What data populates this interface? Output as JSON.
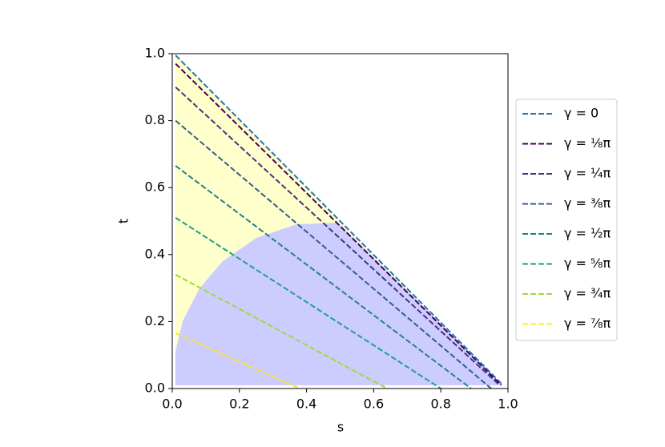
{
  "chart_data": {
    "type": "line",
    "xlabel": "s",
    "ylabel": "t",
    "xlim": [
      0,
      1
    ],
    "ylim": [
      0,
      1
    ],
    "xticks": [
      {
        "value": 0,
        "label": "0.0"
      },
      {
        "value": 0.2,
        "label": "0.2"
      },
      {
        "value": 0.4,
        "label": "0.4"
      },
      {
        "value": 0.6,
        "label": "0.6"
      },
      {
        "value": 0.8,
        "label": "0.8"
      },
      {
        "value": 1,
        "label": "1.0"
      }
    ],
    "yticks": [
      {
        "value": 0,
        "label": "0.0"
      },
      {
        "value": 0.2,
        "label": "0.2"
      },
      {
        "value": 0.4,
        "label": "0.4"
      },
      {
        "value": 0.6,
        "label": "0.6"
      },
      {
        "value": 0.8,
        "label": "0.8"
      },
      {
        "value": 1,
        "label": "1.0"
      }
    ],
    "legend": "outside-right",
    "series": [
      {
        "name": "γ = 0",
        "color": "#1f77b4",
        "x": [
          0.01,
          0.985
        ],
        "values": [
          0.995,
          0.01
        ]
      },
      {
        "name": "γ = ⅛π",
        "color": "#440154",
        "x": [
          0.01,
          0.98
        ],
        "values": [
          0.97,
          0.01
        ]
      },
      {
        "name": "γ = ¼π",
        "color": "#46327e",
        "x": [
          0.01,
          0.975
        ],
        "values": [
          0.9,
          0.01
        ]
      },
      {
        "name": "γ = ⅜π",
        "color": "#365c8d",
        "x": [
          0.01,
          0.95
        ],
        "values": [
          0.8,
          0.0
        ]
      },
      {
        "name": "γ = ½π",
        "color": "#277f8e",
        "x": [
          0.01,
          0.89
        ],
        "values": [
          0.665,
          0.0
        ]
      },
      {
        "name": "γ = ⅝π",
        "color": "#1fa187",
        "x": [
          0.01,
          0.8
        ],
        "values": [
          0.51,
          0.0
        ]
      },
      {
        "name": "γ = ¾π",
        "color": "#a0da39",
        "x": [
          0.01,
          0.64
        ],
        "values": [
          0.34,
          0.0
        ]
      },
      {
        "name": "γ = ⅞π",
        "color": "#fde725",
        "x": [
          0.01,
          0.38
        ],
        "values": [
          0.165,
          0.0
        ]
      }
    ]
  }
}
